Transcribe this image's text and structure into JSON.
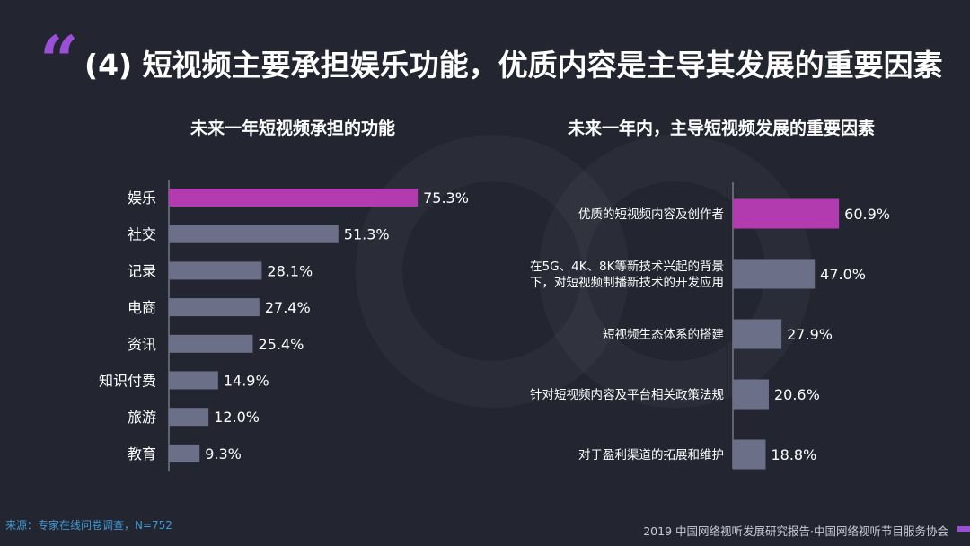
{
  "title": "(4) 短视频主要承担娱乐功能，优质内容是主导其发展的重要因素",
  "quote_mark": "“",
  "colors": {
    "background": "#232631",
    "highlight": "#b23bb0",
    "bar": "#6b7088",
    "accent": "#9b4fd8",
    "source": "#3f9ad6"
  },
  "chart_data": [
    {
      "type": "bar",
      "orientation": "horizontal",
      "title": "未来一年短视频承担的功能",
      "categories": [
        "娱乐",
        "社交",
        "记录",
        "电商",
        "资讯",
        "知识付费",
        "旅游",
        "教育"
      ],
      "values": [
        75.3,
        51.3,
        28.1,
        27.4,
        25.4,
        14.9,
        12.0,
        9.3
      ],
      "value_labels": [
        "75.3%",
        "51.3%",
        "28.1%",
        "27.4%",
        "25.4%",
        "14.9%",
        "12.0%",
        "9.3%"
      ],
      "unit": "%",
      "highlight_index": 0,
      "xlim": [
        0,
        100
      ],
      "grid": false
    },
    {
      "type": "bar",
      "orientation": "horizontal",
      "title": "未来一年内，主导短视频发展的重要因素",
      "categories": [
        [
          "优质的短视频内容及创作者"
        ],
        [
          "在5G、4K、8K等新技术兴起的背景",
          "下，对短视频制播新技术的开发应用"
        ],
        [
          "短视频生态体系的搭建"
        ],
        [
          "针对短视频内容及平台相关政策法规"
        ],
        [
          "对于盈利渠道的拓展和维护"
        ]
      ],
      "values": [
        60.9,
        47.0,
        27.9,
        20.6,
        18.8
      ],
      "value_labels": [
        "60.9%",
        "47.0%",
        "27.9%",
        "20.6%",
        "18.8%"
      ],
      "unit": "%",
      "highlight_index": 0,
      "xlim": [
        0,
        100
      ],
      "grid": false
    }
  ],
  "source": "来源：专家在线问卷调查，N=752",
  "footer": "2019 中国网络视听发展研究报告·中国网络视听节目服务协会"
}
